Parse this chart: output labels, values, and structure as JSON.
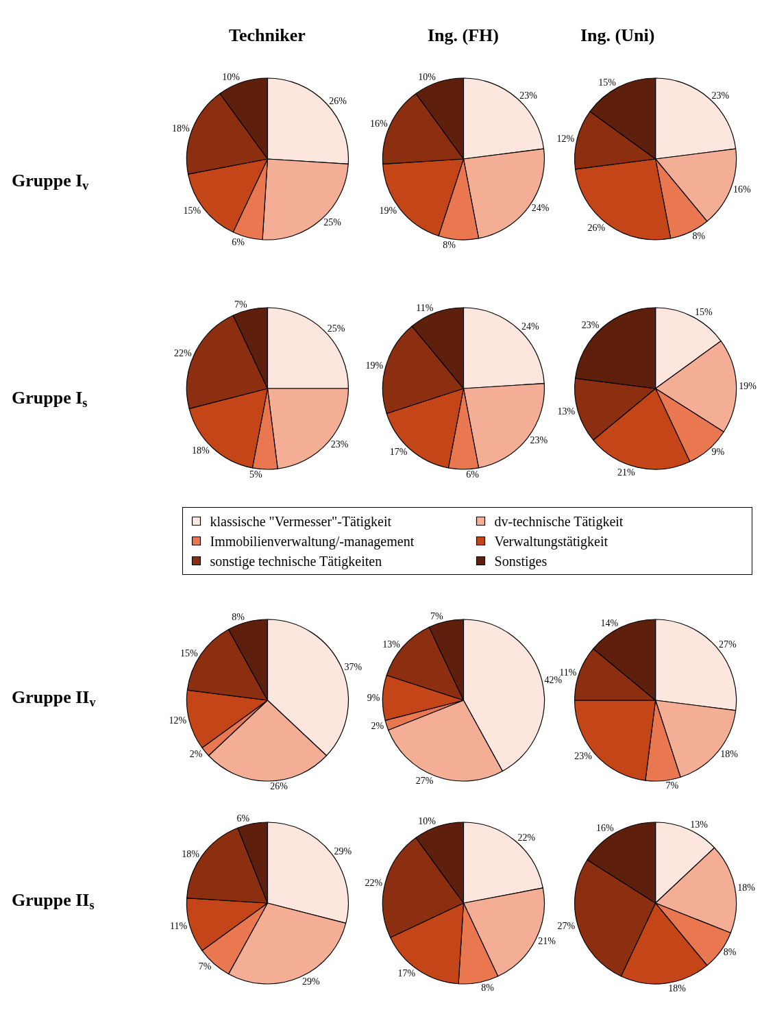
{
  "chart_data": [
    {
      "type": "pie",
      "title": "Techniker",
      "ylabel": "Gruppe I$_{v}$",
      "legend": "bottom",
      "categories": [
        "klassische \"Vermesser\"-Tätigkeit",
        "dv-technische Tätigkeit",
        "Immobilienverwaltung/-management",
        "Verwaltungstätigkeit",
        "sonstige technische Tätigkeiten",
        "Sonstiges"
      ],
      "colors": [
        "#fce6dd",
        "#f4ae96",
        "#e9774f",
        "#c44517",
        "#8c2e10",
        "#5e200d"
      ],
      "values": [
        26,
        25,
        6,
        15,
        18,
        10
      ],
      "value_labels": [
        "26%",
        "25%",
        "6%",
        "15%",
        "18%",
        "10%"
      ]
    },
    {
      "type": "pie",
      "title": "Ing. (FH)",
      "colors": [
        "#fce6dd",
        "#f4ae96",
        "#e9774f",
        "#c44517",
        "#8c2e10",
        "#5e200d"
      ],
      "values": [
        23,
        24,
        8,
        19,
        16,
        10
      ],
      "value_labels": [
        "23%",
        "24%",
        "8%",
        "19%",
        "16%",
        "10%"
      ]
    },
    {
      "type": "pie",
      "title": "Ing. (Uni)",
      "colors": [
        "#fce6dd",
        "#f4ae96",
        "#e9774f",
        "#c44517",
        "#8c2e10",
        "#5e200d"
      ],
      "values": [
        23,
        16,
        8,
        26,
        12,
        15
      ],
      "value_labels": [
        "23%",
        "16%",
        "8%",
        "26%",
        "12%",
        "15%"
      ]
    },
    {
      "type": "pie",
      "ylabel": "Gruppe I$_{s}$",
      "colors": [
        "#fce6dd",
        "#f4ae96",
        "#e9774f",
        "#c44517",
        "#8c2e10",
        "#5e200d"
      ],
      "values": [
        25,
        23,
        5,
        18,
        22,
        7
      ],
      "value_labels": [
        "25%",
        "23%",
        "5%",
        "18%",
        "22%",
        "7%"
      ]
    },
    {
      "type": "pie",
      "colors": [
        "#fce6dd",
        "#f4ae96",
        "#e9774f",
        "#c44517",
        "#8c2e10",
        "#5e200d"
      ],
      "values": [
        24,
        23,
        6,
        17,
        19,
        11
      ],
      "value_labels": [
        "24%",
        "23%",
        "6%",
        "17%",
        "19%",
        "11%"
      ]
    },
    {
      "type": "pie",
      "colors": [
        "#fce6dd",
        "#f4ae96",
        "#e9774f",
        "#c44517",
        "#8c2e10",
        "#5e200d"
      ],
      "values": [
        15,
        19,
        9,
        21,
        13,
        23
      ],
      "value_labels": [
        "15%",
        "19%",
        "9%",
        "21%",
        "13%",
        "23%"
      ]
    },
    {
      "type": "pie",
      "ylabel": "Gruppe II$_{v}$",
      "colors": [
        "#fce6dd",
        "#f4ae96",
        "#e9774f",
        "#c44517",
        "#8c2e10",
        "#5e200d"
      ],
      "values": [
        37,
        26,
        2,
        12,
        15,
        8
      ],
      "value_labels": [
        "37%",
        "26%",
        "2%",
        "12%",
        "15%",
        "8%"
      ]
    },
    {
      "type": "pie",
      "colors": [
        "#fce6dd",
        "#f4ae96",
        "#e9774f",
        "#c44517",
        "#8c2e10",
        "#5e200d"
      ],
      "values": [
        42,
        27,
        2,
        9,
        13,
        7
      ],
      "value_labels": [
        "42%",
        "27%",
        "2%",
        "9%",
        "13%",
        "7%"
      ]
    },
    {
      "type": "pie",
      "colors": [
        "#fce6dd",
        "#f4ae96",
        "#e9774f",
        "#c44517",
        "#8c2e10",
        "#5e200d"
      ],
      "values": [
        27,
        18,
        7,
        23,
        11,
        14
      ],
      "value_labels": [
        "27%",
        "18%",
        "7%",
        "23%",
        "11%",
        "14%"
      ]
    },
    {
      "type": "pie",
      "ylabel": "Gruppe II$_{s}$",
      "colors": [
        "#fce6dd",
        "#f4ae96",
        "#e9774f",
        "#c44517",
        "#8c2e10",
        "#5e200d"
      ],
      "values": [
        29,
        29,
        7,
        11,
        18,
        6
      ],
      "value_labels": [
        "29%",
        "29%",
        "7%",
        "11%",
        "18%",
        "6%"
      ]
    },
    {
      "type": "pie",
      "colors": [
        "#fce6dd",
        "#f4ae96",
        "#e9774f",
        "#c44517",
        "#8c2e10",
        "#5e200d"
      ],
      "values": [
        22,
        21,
        8,
        17,
        22,
        10
      ],
      "value_labels": [
        "22%",
        "21%",
        "8%",
        "17%",
        "22%",
        "10%"
      ]
    },
    {
      "type": "pie",
      "colors": [
        "#fce6dd",
        "#f4ae96",
        "#e9774f",
        "#c44517",
        "#8c2e10",
        "#5e200d"
      ],
      "values": [
        13,
        18,
        8,
        18,
        27,
        16
      ],
      "value_labels": [
        "13%",
        "18%",
        "8%",
        "18%",
        "27%",
        "16%"
      ]
    }
  ]
}
